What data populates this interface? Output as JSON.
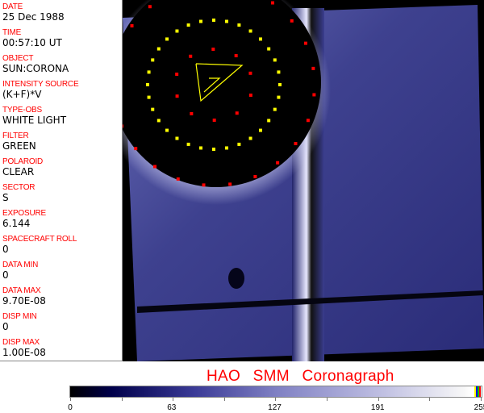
{
  "header_fields": [
    {
      "label": "DATE",
      "value": "25 Dec 1988"
    },
    {
      "label": "TIME",
      "value": "00:57:10 UT"
    },
    {
      "label": "OBJECT",
      "value": "SUN:CORONA"
    },
    {
      "label": "INTENSITY SOURCE",
      "value": "(K+F)*V"
    },
    {
      "label": "TYPE-OBS",
      "value": "WHITE LIGHT"
    },
    {
      "label": "FILTER",
      "value": "GREEN"
    },
    {
      "label": "POLAROID",
      "value": "CLEAR"
    },
    {
      "label": "SECTOR",
      "value": "S"
    },
    {
      "label": "EXPOSURE",
      "value": "6.144"
    },
    {
      "label": "SPACECRAFT ROLL",
      "value": "0"
    },
    {
      "label": "DATA MIN",
      "value": "0"
    },
    {
      "label": "DATA MAX",
      "value": "9.70E-08"
    },
    {
      "label": "DISP MIN",
      "value": "0"
    },
    {
      "label": "DISP MAX",
      "value": "1.00E-08"
    }
  ],
  "title": "HAO  SMM  Coronagraph",
  "colorbar": {
    "ticks": [
      "0",
      "63",
      "127",
      "191",
      "255"
    ],
    "min": 0,
    "max": 255,
    "end_colors": [
      "#ffff00",
      "#0000ff",
      "#00c000",
      "#ff0000"
    ]
  },
  "colors": {
    "label": "#ff0000",
    "marker_red": "#ff0000",
    "marker_yellow": "#ffff00",
    "occulter": "#000000"
  }
}
